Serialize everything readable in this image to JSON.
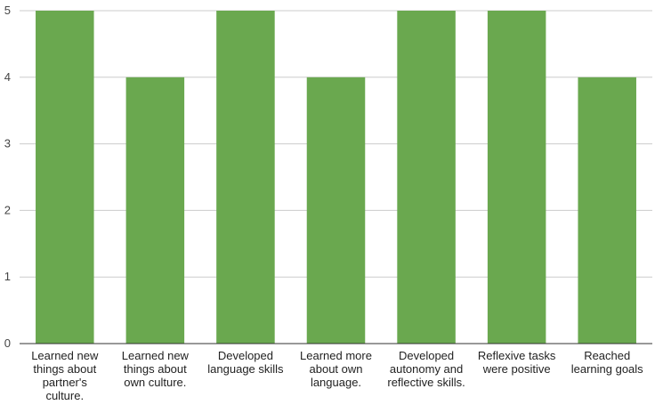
{
  "chart_data": {
    "type": "bar",
    "categories": [
      "Learned new things about partner's culture.",
      "Learned new things about own culture.",
      "Developed language skills",
      "Learned more about own language.",
      "Developed autonomy and reflective skills.",
      "Reflexive tasks were positive",
      "Reached learning goals"
    ],
    "category_lines": [
      [
        "Learned new",
        "things about",
        "partner's",
        "culture."
      ],
      [
        "Learned new",
        "things about",
        "own culture."
      ],
      [
        "Developed",
        "language skills"
      ],
      [
        "Learned more",
        "about own",
        "language."
      ],
      [
        "Developed",
        "autonomy and",
        "reflective skills."
      ],
      [
        "Reflexive tasks",
        "were positive"
      ],
      [
        "Reached",
        "learning goals"
      ]
    ],
    "values": [
      5,
      4,
      5,
      4,
      5,
      5,
      4
    ],
    "ylim": [
      0,
      5
    ],
    "yticks": [
      "0",
      "1",
      "2",
      "3",
      "4",
      "5"
    ],
    "title": "",
    "xlabel": "",
    "ylabel": "",
    "grid": true,
    "bar_color": "#6aa84f",
    "grid_color": "#cccccc",
    "axis_color": "#333333"
  }
}
